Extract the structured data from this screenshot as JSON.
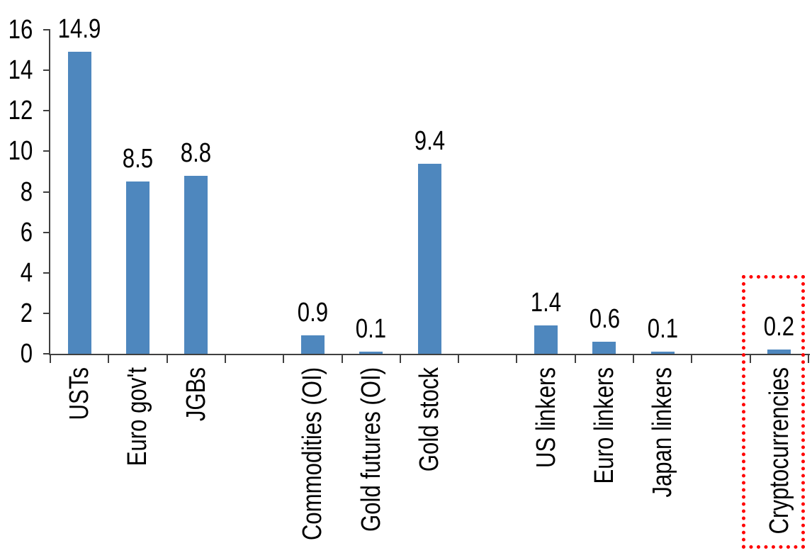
{
  "chart_data": {
    "type": "bar",
    "categories": [
      "USTs",
      "Euro gov't",
      "JGBs",
      "Commodities (OI)",
      "Gold futures (OI)",
      "Gold stock",
      "US linkers",
      "Euro linkers",
      "Japan linkers",
      "Cryptocurrencies"
    ],
    "values": [
      14.9,
      8.5,
      8.8,
      0.9,
      0.1,
      9.4,
      1.4,
      0.6,
      0.1,
      0.2
    ],
    "slot_index": [
      0,
      1,
      2,
      4,
      5,
      6,
      8,
      9,
      10,
      12
    ],
    "total_slots": 13,
    "y_ticks": [
      0,
      2,
      4,
      6,
      8,
      10,
      12,
      14,
      16
    ],
    "ylim": [
      0,
      16
    ],
    "xlabel": "",
    "ylabel": "",
    "grid": false,
    "legend": false,
    "data_labels_position": "outside-end",
    "x_label_rotation_deg": 90,
    "bar_color": "#4E87BE",
    "axis_color": "#404040",
    "text_color": "#000000",
    "highlight": {
      "category": "Cryptocurrencies",
      "style": "dotted-box",
      "color": "#FF0000"
    }
  }
}
